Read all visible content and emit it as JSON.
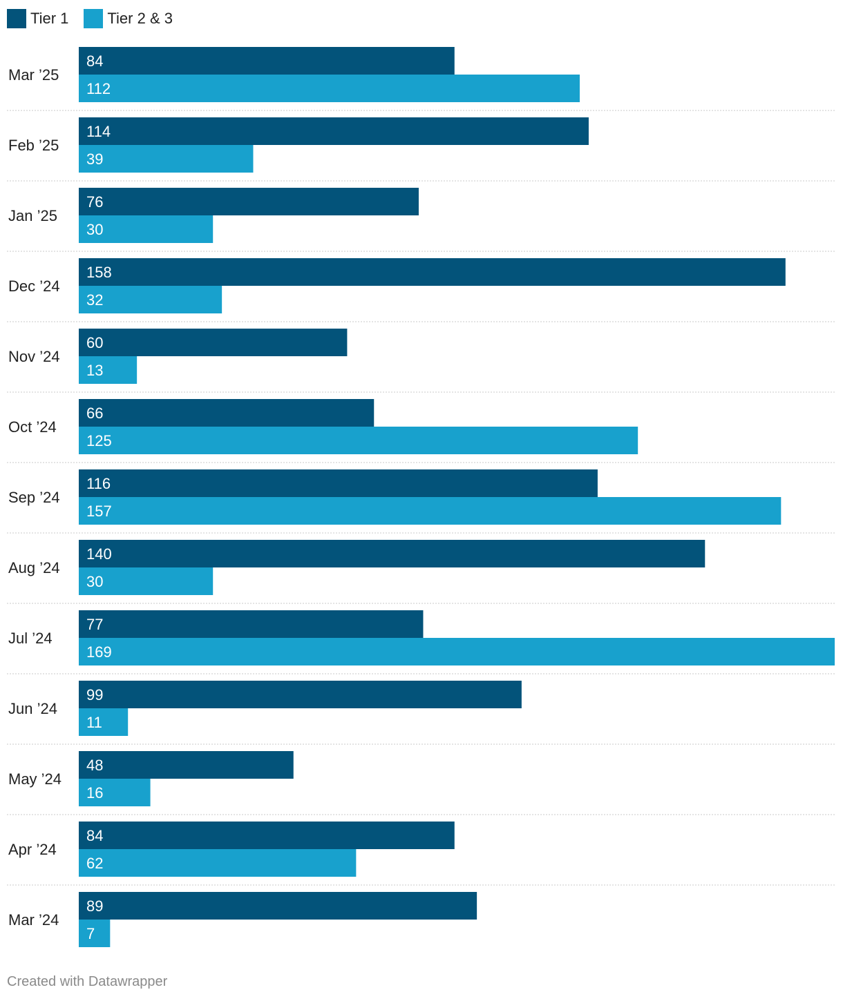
{
  "legend": [
    {
      "name": "Tier 1",
      "color": "#03537a"
    },
    {
      "name": "Tier 2 & 3",
      "color": "#18a1cd"
    }
  ],
  "chart_data": {
    "type": "bar",
    "orientation": "horizontal",
    "categories": [
      "Mar ’25",
      "Feb ’25",
      "Jan ’25",
      "Dec ’24",
      "Nov ’24",
      "Oct ’24",
      "Sep ’24",
      "Aug ’24",
      "Jul ’24",
      "Jun ’24",
      "May ’24",
      "Apr ’24",
      "Mar ’24"
    ],
    "series": [
      {
        "name": "Tier 1",
        "color": "#03537a",
        "values": [
          84,
          114,
          76,
          158,
          60,
          66,
          116,
          140,
          77,
          99,
          48,
          84,
          89
        ]
      },
      {
        "name": "Tier 2 & 3",
        "color": "#18a1cd",
        "values": [
          112,
          39,
          30,
          32,
          13,
          125,
          157,
          30,
          169,
          11,
          16,
          62,
          7
        ]
      }
    ],
    "xlim": [
      0,
      169
    ],
    "grid": false,
    "legend_position": "top-left"
  },
  "footer": "Created with Datawrapper"
}
